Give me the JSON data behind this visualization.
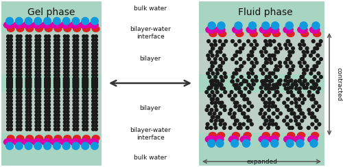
{
  "fig_width": 5.0,
  "fig_height": 2.43,
  "dpi": 100,
  "bg_color": "#ffffff",
  "panel_bg": "#a8d5c2",
  "bilayer_bg_top": "#d8d8d8",
  "black": "#1a1a1a",
  "red": "#dd2222",
  "magenta": "#dd00aa",
  "blue": "#1199dd",
  "arrow_color": "#444444",
  "text_color": "#111111",
  "gel_title": "Gel phase",
  "fluid_title": "Fluid phase",
  "labels_center": [
    "bulk water",
    "bilayer-water\ninterface",
    "bilayer",
    "bilayer",
    "bilayer-water\ninterface",
    "bulk water"
  ],
  "contracted_label": "contracted",
  "expanded_label": "expanded"
}
